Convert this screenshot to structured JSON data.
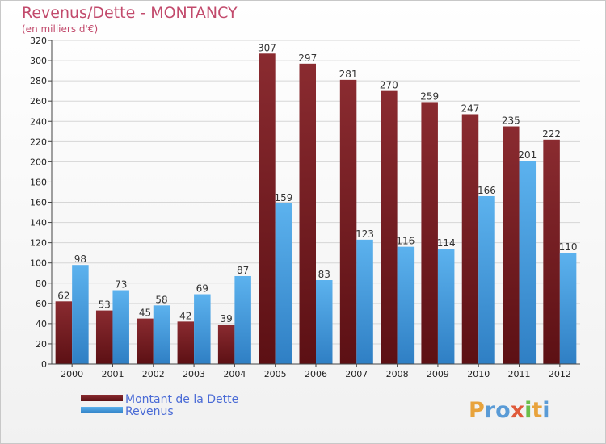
{
  "chart_data": {
    "type": "bar",
    "title": "Revenus/Dette - MONTANCY",
    "subtitle": "(en milliers d'€)",
    "xlabel": "",
    "ylabel": "",
    "ylim": [
      0,
      320
    ],
    "yticks": [
      "0",
      "20",
      "40",
      "60",
      "80",
      "100",
      "120",
      "140",
      "160",
      "180",
      "200",
      "220",
      "240",
      "260",
      "280",
      "300",
      "320"
    ],
    "grid": true,
    "legend_position": "bottom-left",
    "categories": [
      "2000",
      "2001",
      "2002",
      "2003",
      "2004",
      "2005",
      "2006",
      "2007",
      "2008",
      "2009",
      "2010",
      "2011",
      "2012"
    ],
    "series": [
      {
        "name": "Montant de la Dette",
        "color": "#7a1e22",
        "values": [
          62,
          53,
          45,
          42,
          39,
          307,
          297,
          281,
          270,
          259,
          247,
          235,
          222
        ],
        "labels": [
          "62",
          "53",
          "45",
          "42",
          "39",
          "307",
          "297",
          "281",
          "270",
          "259",
          "247",
          "235",
          "222"
        ]
      },
      {
        "name": "Revenus",
        "color": "#4a9fe0",
        "values": [
          98,
          73,
          58,
          69,
          87,
          159,
          83,
          123,
          116,
          114,
          166,
          201,
          110
        ],
        "labels": [
          "98",
          "73",
          "58",
          "69",
          "87",
          "159",
          "83",
          "123",
          "116",
          "114",
          "166",
          "201",
          "110"
        ]
      }
    ]
  },
  "logo": {
    "letters": [
      "P",
      "r",
      "o",
      "x",
      "i",
      "t",
      "i"
    ],
    "colors": [
      "#e8a33c",
      "#5a9bd6",
      "#5a9bd6",
      "#e05a3a",
      "#6bbf4a",
      "#e8a33c",
      "#5a9bd6"
    ]
  }
}
